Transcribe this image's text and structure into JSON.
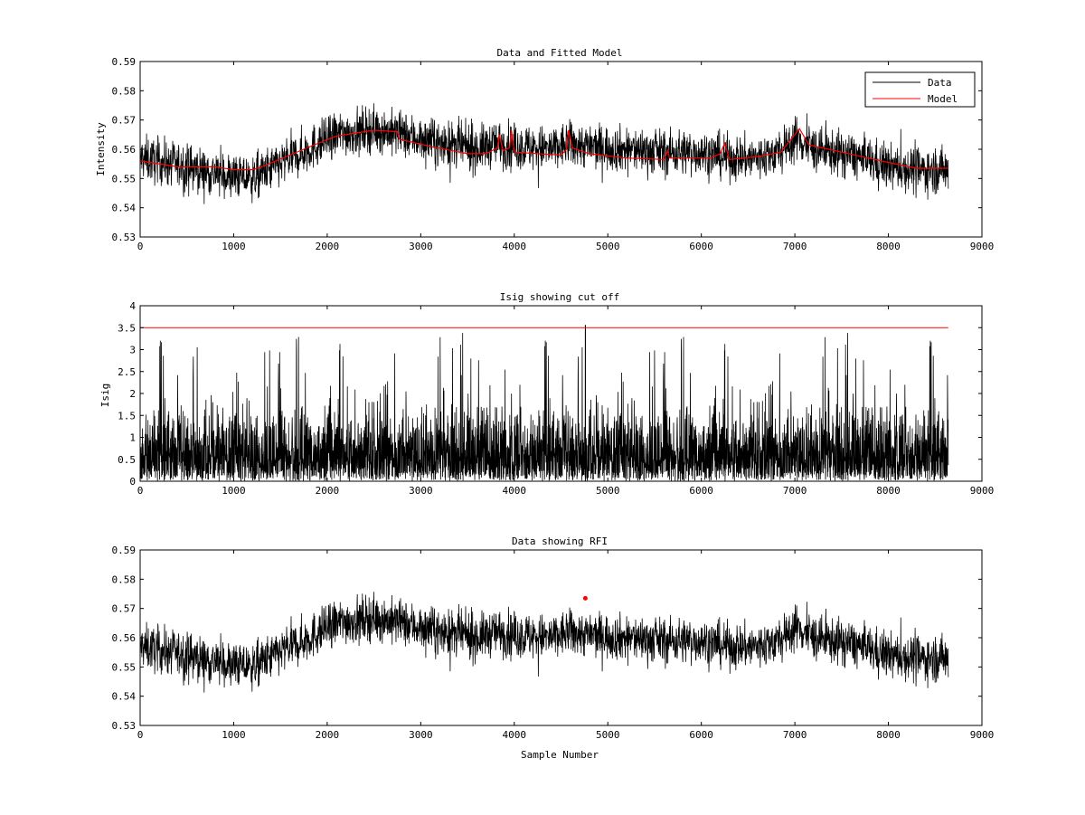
{
  "chart_data": [
    {
      "type": "line",
      "title": "Data and Fitted Model",
      "xlabel": "",
      "ylabel": "Intensity",
      "xlim": [
        0,
        9000
      ],
      "ylim": [
        0.53,
        0.59
      ],
      "xticks": [
        "0",
        "1000",
        "2000",
        "3000",
        "4000",
        "5000",
        "6000",
        "7000",
        "8000",
        "9000"
      ],
      "yticks": [
        "0.53",
        "0.54",
        "0.55",
        "0.56",
        "0.57",
        "0.58",
        "0.59"
      ],
      "legend": {
        "placement": "top-right",
        "entries": [
          "Data",
          "Model"
        ]
      },
      "series": [
        {
          "name": "Data",
          "color": "#000000",
          "noise_amplitude": 0.007,
          "x": [
            0,
            500,
            900,
            1200,
            1500,
            1800,
            2100,
            2500,
            2800,
            3200,
            3600,
            3800,
            4000,
            4400,
            4600,
            4800,
            5200,
            5600,
            6000,
            6300,
            6600,
            6900,
            7000,
            7200,
            7600,
            8000,
            8300,
            8640
          ],
          "values": [
            0.557,
            0.554,
            0.551,
            0.55,
            0.555,
            0.56,
            0.565,
            0.567,
            0.565,
            0.562,
            0.56,
            0.562,
            0.561,
            0.56,
            0.562,
            0.561,
            0.56,
            0.559,
            0.559,
            0.557,
            0.557,
            0.56,
            0.564,
            0.56,
            0.558,
            0.554,
            0.553,
            0.553
          ]
        },
        {
          "name": "Model",
          "color": "#ff0000",
          "x": [
            0,
            400,
            800,
            1000,
            1200,
            1300,
            1600,
            1900,
            2100,
            2500,
            2750,
            2770,
            3100,
            3500,
            3700,
            3820,
            3840,
            3880,
            3950,
            3970,
            4000,
            4500,
            4560,
            4580,
            4620,
            4800,
            5200,
            5600,
            5640,
            5660,
            6100,
            6200,
            6250,
            6300,
            6600,
            6850,
            6950,
            7050,
            7150,
            7500,
            8000,
            8300,
            8640
          ],
          "values": [
            0.556,
            0.554,
            0.554,
            0.553,
            0.553,
            0.554,
            0.558,
            0.562,
            0.5645,
            0.5665,
            0.566,
            0.5635,
            0.561,
            0.5585,
            0.5585,
            0.5605,
            0.565,
            0.5595,
            0.5605,
            0.5665,
            0.559,
            0.558,
            0.56,
            0.5665,
            0.5605,
            0.5585,
            0.557,
            0.5565,
            0.5595,
            0.557,
            0.557,
            0.5585,
            0.562,
            0.5565,
            0.5575,
            0.559,
            0.563,
            0.567,
            0.5615,
            0.559,
            0.5555,
            0.5535,
            0.5535
          ]
        }
      ]
    },
    {
      "type": "line",
      "title": "Isig showing cut off",
      "xlabel": "",
      "ylabel": "Isig",
      "xlim": [
        0,
        9000
      ],
      "ylim": [
        0,
        4
      ],
      "xticks": [
        "0",
        "1000",
        "2000",
        "3000",
        "4000",
        "5000",
        "6000",
        "7000",
        "8000",
        "9000"
      ],
      "yticks": [
        "0",
        "0.5",
        "1",
        "1.5",
        "2",
        "2.5",
        "3",
        "3.5",
        "4"
      ],
      "cutoff": {
        "value": 3.5,
        "x": [
          0,
          8640
        ],
        "color": "#ff0000"
      },
      "series": [
        {
          "color": "#000000",
          "x_range": [
            0,
            8640
          ],
          "typical_max": 3.4,
          "peak": {
            "x": 4760,
            "y": 3.56
          }
        }
      ]
    },
    {
      "type": "line",
      "title": "Data showing RFI",
      "xlabel": "Sample Number",
      "ylabel": "",
      "xlim": [
        0,
        9000
      ],
      "ylim": [
        0.53,
        0.59
      ],
      "xticks": [
        "0",
        "1000",
        "2000",
        "3000",
        "4000",
        "5000",
        "6000",
        "7000",
        "8000",
        "9000"
      ],
      "yticks": [
        "0.53",
        "0.54",
        "0.55",
        "0.56",
        "0.57",
        "0.58",
        "0.59"
      ],
      "series": [
        {
          "color": "#000000",
          "same_as": "Data"
        }
      ],
      "rfi_points": [
        {
          "x": 4760,
          "y": 0.5735,
          "color": "#ff0000"
        }
      ]
    }
  ]
}
